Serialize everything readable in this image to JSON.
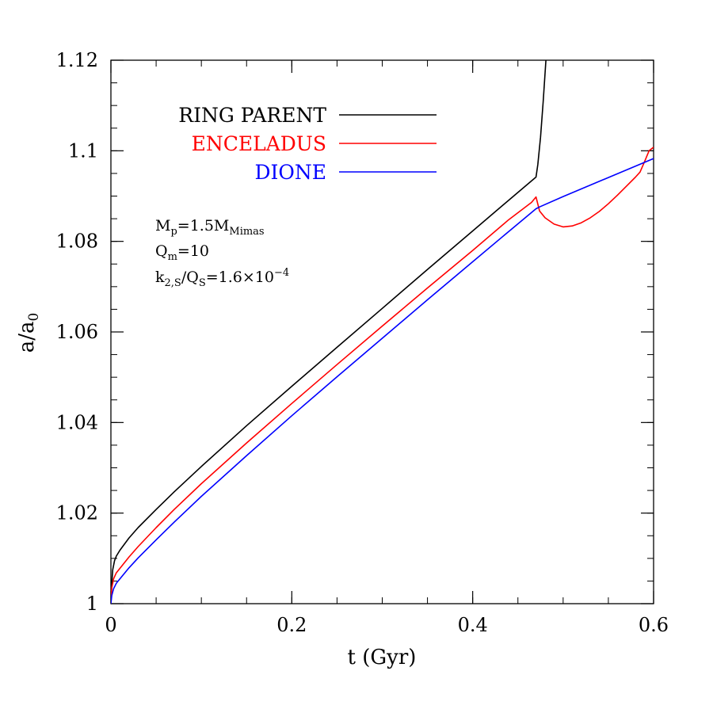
{
  "chart_data": {
    "type": "line",
    "xlabel": "t (Gyr)",
    "ylabel": {
      "main": "a/a",
      "sub": "0"
    },
    "xlim": [
      0,
      0.6
    ],
    "ylim": [
      1.0,
      1.12
    ],
    "x_ticks": [
      {
        "value": 0,
        "label": "0"
      },
      {
        "value": 0.2,
        "label": "0.2"
      },
      {
        "value": 0.4,
        "label": "0.4"
      },
      {
        "value": 0.6,
        "label": "0.6"
      }
    ],
    "y_ticks": [
      {
        "value": 1.0,
        "label": "1"
      },
      {
        "value": 1.02,
        "label": "1.02"
      },
      {
        "value": 1.04,
        "label": "1.04"
      },
      {
        "value": 1.06,
        "label": "1.06"
      },
      {
        "value": 1.08,
        "label": "1.08"
      },
      {
        "value": 1.1,
        "label": "1.1"
      },
      {
        "value": 1.12,
        "label": "1.12"
      }
    ],
    "x_minor_step": 0.05,
    "y_minor_step": 0.005,
    "grid": false,
    "legend_position": "top-left",
    "series": [
      {
        "name": "RING PARENT",
        "color": "#000000",
        "points": [
          [
            0,
            1.0
          ],
          [
            0.001,
            1.0045
          ],
          [
            0.002,
            1.0075
          ],
          [
            0.004,
            1.0095
          ],
          [
            0.006,
            1.0105
          ],
          [
            0.01,
            1.0118
          ],
          [
            0.02,
            1.0145
          ],
          [
            0.03,
            1.0168
          ],
          [
            0.05,
            1.0208
          ],
          [
            0.07,
            1.0247
          ],
          [
            0.1,
            1.0303
          ],
          [
            0.15,
            1.0393
          ],
          [
            0.2,
            1.048
          ],
          [
            0.25,
            1.0566
          ],
          [
            0.3,
            1.0652
          ],
          [
            0.35,
            1.0738
          ],
          [
            0.4,
            1.0823
          ],
          [
            0.44,
            1.0891
          ],
          [
            0.47,
            1.0942
          ],
          [
            0.472,
            1.097
          ],
          [
            0.475,
            1.103
          ],
          [
            0.478,
            1.111
          ],
          [
            0.481,
            1.12
          ]
        ]
      },
      {
        "name": "ENCELADUS",
        "color": "#ff0000",
        "points": [
          [
            0,
            1.0
          ],
          [
            0.001,
            1.0035
          ],
          [
            0.003,
            1.0055
          ],
          [
            0.006,
            1.0068
          ],
          [
            0.01,
            1.0078
          ],
          [
            0.02,
            1.0103
          ],
          [
            0.03,
            1.0126
          ],
          [
            0.05,
            1.0168
          ],
          [
            0.07,
            1.0208
          ],
          [
            0.1,
            1.0265
          ],
          [
            0.15,
            1.0355
          ],
          [
            0.2,
            1.0442
          ],
          [
            0.25,
            1.0528
          ],
          [
            0.3,
            1.0613
          ],
          [
            0.35,
            1.0697
          ],
          [
            0.4,
            1.078
          ],
          [
            0.44,
            1.0848
          ],
          [
            0.465,
            1.0886
          ],
          [
            0.47,
            1.0898
          ],
          [
            0.474,
            1.0867
          ],
          [
            0.48,
            1.0852
          ],
          [
            0.49,
            1.0838
          ],
          [
            0.5,
            1.0832
          ],
          [
            0.51,
            1.0834
          ],
          [
            0.52,
            1.0841
          ],
          [
            0.53,
            1.0852
          ],
          [
            0.54,
            1.0866
          ],
          [
            0.55,
            1.0883
          ],
          [
            0.56,
            1.0902
          ],
          [
            0.57,
            1.0922
          ],
          [
            0.58,
            1.0942
          ],
          [
            0.585,
            1.0953
          ],
          [
            0.59,
            1.0976
          ],
          [
            0.595,
            1.1
          ],
          [
            0.6,
            1.1008
          ]
        ]
      },
      {
        "name": "DIONE",
        "color": "#0000ff",
        "points": [
          [
            0,
            1.0
          ],
          [
            0.001,
            1.0018
          ],
          [
            0.003,
            1.0033
          ],
          [
            0.006,
            1.0045
          ],
          [
            0.01,
            1.0055
          ],
          [
            0.02,
            1.0079
          ],
          [
            0.03,
            1.0101
          ],
          [
            0.05,
            1.0141
          ],
          [
            0.07,
            1.018
          ],
          [
            0.1,
            1.0237
          ],
          [
            0.15,
            1.0327
          ],
          [
            0.2,
            1.0415
          ],
          [
            0.25,
            1.0501
          ],
          [
            0.3,
            1.0586
          ],
          [
            0.35,
            1.0671
          ],
          [
            0.4,
            1.0755
          ],
          [
            0.44,
            1.0822
          ],
          [
            0.47,
            1.0872
          ],
          [
            0.474,
            1.0876
          ],
          [
            0.5,
            1.0899
          ],
          [
            0.55,
            1.0941
          ],
          [
            0.6,
            1.0983
          ]
        ]
      }
    ],
    "annotations": {
      "line1": {
        "a": "M",
        "a_sub": "p",
        "b": "=1.5M",
        "b_sub": "Mimas"
      },
      "line2": {
        "a": "Q",
        "a_sub": "m",
        "b": "=10"
      },
      "line3": {
        "a": "k",
        "a_sub": "2,S",
        "b": "/Q",
        "b_sub": "S",
        "c": "=1.6×10",
        "c_sup": "−4"
      }
    }
  }
}
